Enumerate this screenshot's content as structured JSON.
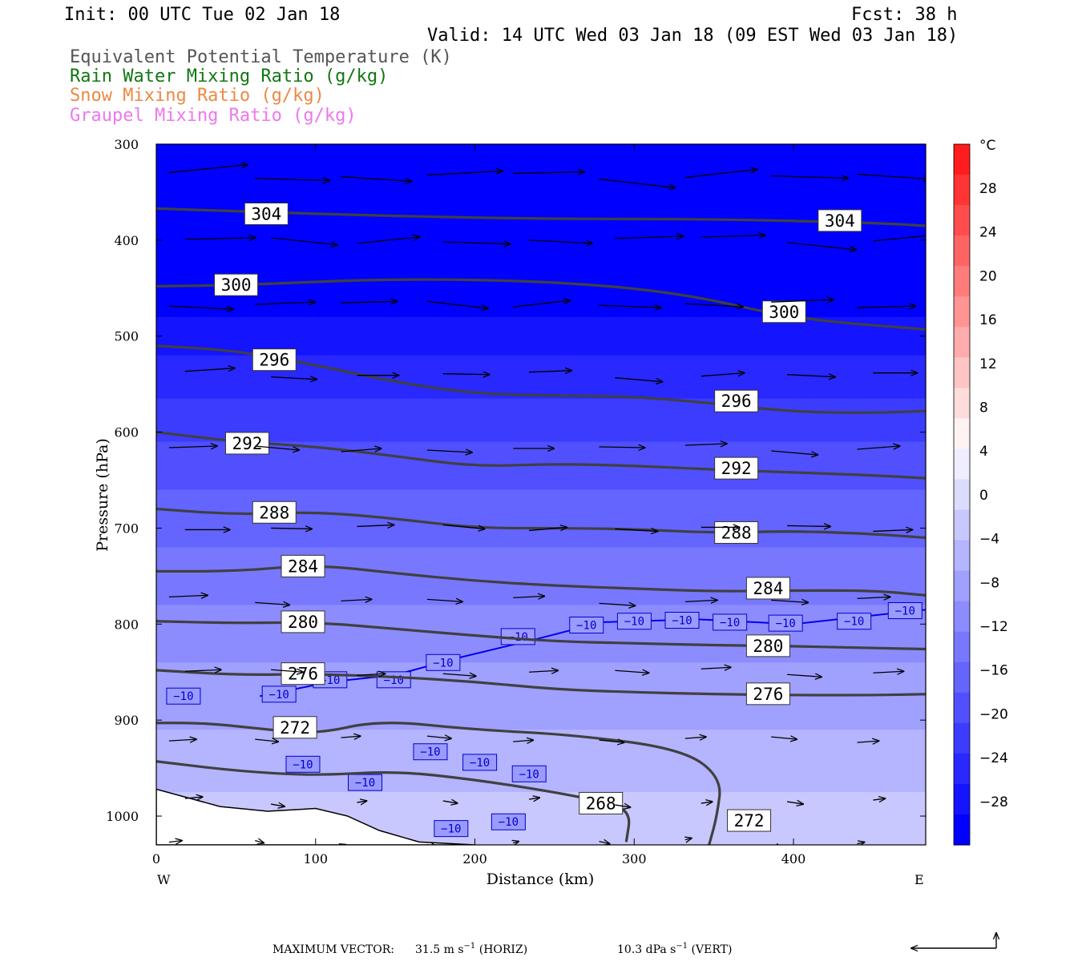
{
  "header": {
    "init": "Init: 00 UTC Tue 02 Jan 18",
    "fcst": "Fcst:   38 h",
    "valid": "Valid: 14 UTC Wed 03 Jan 18 (09 EST Wed 03 Jan 18)",
    "fields": [
      {
        "label": "Equivalent Potential Temperature (K)",
        "color": "#555555"
      },
      {
        "label": "Rain Water Mixing Ratio (g/kg)",
        "color": "#117711"
      },
      {
        "label": "Snow Mixing Ratio (g/kg)",
        "color": "#ee8844"
      },
      {
        "label": "Graupel Mixing Ratio (g/kg)",
        "color": "#ee77ee"
      }
    ]
  },
  "axes": {
    "ylabel": "Pressure (hPa)",
    "xlabel": "Distance (km)",
    "yticks": [
      "300",
      "400",
      "500",
      "600",
      "700",
      "800",
      "900",
      "1000"
    ],
    "xticks": [
      "0",
      "100",
      "200",
      "300",
      "400"
    ],
    "west": "W",
    "east": "E"
  },
  "colorbar": {
    "unit": "°C",
    "labels": [
      "28",
      "24",
      "20",
      "16",
      "12",
      "8",
      "4",
      "0",
      "−4",
      "−8",
      "−12",
      "−16",
      "−20",
      "−24",
      "−28"
    ]
  },
  "footer": {
    "max_vector": "MAXIMUM VECTOR:",
    "horiz_val": "31.5 m s",
    "horiz_exp": "−1",
    "horiz_tag": " (HORIZ)",
    "vert_val": "10.3 dPa s",
    "vert_exp": "−1",
    "vert_tag": " (VERT)"
  },
  "chart_data": {
    "type": "cross-section",
    "x_range_km": [
      0,
      483
    ],
    "y_range_hPa": [
      300,
      1030
    ],
    "y_scale": "linear",
    "fill_field": "Temperature (°C)",
    "fill_levels": [
      28,
      24,
      20,
      16,
      12,
      8,
      4,
      0,
      -4,
      -8,
      -12,
      -16,
      -20,
      -24,
      -28
    ],
    "fill_colors": [
      "#ff1c1c",
      "#ff3434",
      "#ff4c4c",
      "#ff6464",
      "#ff7c7c",
      "#ff9494",
      "#ffacac",
      "#ffc4c4",
      "#ffdcdc",
      "#fff2f2",
      "#eeeeff",
      "#dcdcff",
      "#c8c8ff",
      "#b4b4ff",
      "#a0a0ff",
      "#8c8cff",
      "#7878ff",
      "#6464ff",
      "#5050ff",
      "#3c3cff",
      "#2828ff",
      "#1414ff",
      "#0000ff"
    ],
    "temperature_bands": [
      {
        "top_hPa": 300,
        "color": "#0000ff"
      },
      {
        "top_hPa": 480,
        "color": "#1414ff"
      },
      {
        "top_hPa": 520,
        "color": "#2828ff"
      },
      {
        "top_hPa": 565,
        "color": "#3c3cff"
      },
      {
        "top_hPa": 610,
        "color": "#5050ff"
      },
      {
        "top_hPa": 660,
        "color": "#6464ff"
      },
      {
        "top_hPa": 720,
        "color": "#7878ff"
      },
      {
        "top_hPa": 780,
        "color": "#8c8cff"
      },
      {
        "top_hPa": 840,
        "color": "#a0a0ff"
      },
      {
        "top_hPa": 910,
        "color": "#b4b4ff"
      },
      {
        "top_hPa": 975,
        "color": "#c8c8ff"
      }
    ],
    "theta_e_contours": [
      {
        "value": 304,
        "x": [
          0,
          50,
          150,
          250,
          350,
          450,
          483
        ],
        "p": [
          367,
          370,
          375,
          378,
          378,
          382,
          385
        ],
        "labels": [
          [
            55,
            373
          ],
          [
            415,
            380
          ]
        ]
      },
      {
        "value": 300,
        "x": [
          0,
          50,
          150,
          250,
          330,
          400,
          483
        ],
        "p": [
          448,
          447,
          440,
          443,
          455,
          482,
          493
        ],
        "labels": [
          [
            36,
            447
          ],
          [
            380,
            475
          ]
        ]
      },
      {
        "value": 296,
        "x": [
          0,
          50,
          100,
          150,
          200,
          250,
          300,
          350,
          400,
          450,
          483
        ],
        "p": [
          510,
          515,
          530,
          548,
          560,
          562,
          563,
          570,
          579,
          580,
          578
        ],
        "labels": [
          [
            60,
            525
          ],
          [
            350,
            568
          ]
        ]
      },
      {
        "value": 292,
        "x": [
          0,
          50,
          100,
          150,
          200,
          250,
          300,
          350,
          400,
          450,
          483
        ],
        "p": [
          600,
          610,
          615,
          625,
          636,
          633,
          635,
          639,
          642,
          645,
          648
        ],
        "labels": [
          [
            43,
            612
          ],
          [
            350,
            638
          ]
        ]
      },
      {
        "value": 288,
        "x": [
          0,
          50,
          100,
          150,
          200,
          250,
          300,
          350,
          400,
          450,
          483
        ],
        "p": [
          680,
          686,
          683,
          690,
          700,
          700,
          701,
          705,
          703,
          706,
          710
        ],
        "labels": [
          [
            60,
            684
          ],
          [
            350,
            705
          ]
        ]
      },
      {
        "value": 284,
        "x": [
          0,
          50,
          100,
          150,
          200,
          250,
          300,
          350,
          400,
          450,
          483
        ],
        "p": [
          745,
          745,
          738,
          747,
          755,
          760,
          763,
          766,
          765,
          765,
          770
        ],
        "labels": [
          [
            78,
            740
          ],
          [
            370,
            763
          ]
        ]
      },
      {
        "value": 280,
        "x": [
          0,
          50,
          100,
          150,
          200,
          250,
          300,
          350,
          400,
          450,
          483
        ],
        "p": [
          797,
          799,
          798,
          805,
          812,
          818,
          820,
          822,
          823,
          825,
          826
        ],
        "labels": [
          [
            78,
            798
          ],
          [
            370,
            823
          ]
        ]
      },
      {
        "value": 276,
        "x": [
          0,
          50,
          100,
          150,
          200,
          250,
          300,
          350,
          400,
          450,
          483
        ],
        "p": [
          848,
          853,
          852,
          855,
          860,
          868,
          871,
          873,
          874,
          874,
          873
        ],
        "labels": [
          [
            78,
            852
          ],
          [
            370,
            873
          ]
        ]
      },
      {
        "value": 272,
        "x": [
          0,
          30,
          60,
          100,
          140,
          200,
          260,
          330,
          355,
          352,
          347
        ],
        "p": [
          903,
          903,
          908,
          915,
          900,
          910,
          915,
          930,
          960,
          1000,
          1030
        ],
        "labels": [
          [
            73,
            908
          ],
          [
            358,
            1005
          ]
        ]
      },
      {
        "value": 268,
        "x": [
          0,
          50,
          100,
          150,
          200,
          250,
          280,
          298,
          295
        ],
        "p": [
          943,
          953,
          958,
          953,
          962,
          975,
          985,
          995,
          1027
        ],
        "labels": [
          [
            265,
            987
          ]
        ]
      }
    ],
    "temp_isotherm_-10": {
      "x": [
        65,
        110,
        150,
        190,
        240,
        280,
        340,
        400,
        483
      ],
      "p": [
        875,
        860,
        853,
        835,
        815,
        798,
        795,
        800,
        785
      ]
    },
    "temp_isotherm_labels": [
      {
        "x": 7,
        "p": 875,
        "text": "−10"
      },
      {
        "x": 67,
        "p": 873,
        "text": "−10"
      },
      {
        "x": 99,
        "p": 858,
        "text": "−10"
      },
      {
        "x": 139,
        "p": 858,
        "text": "−10"
      },
      {
        "x": 170,
        "p": 840,
        "text": "−10"
      },
      {
        "x": 217,
        "p": 813,
        "text": "−10"
      },
      {
        "x": 260,
        "p": 801,
        "text": "−10"
      },
      {
        "x": 290,
        "p": 797,
        "text": "−10"
      },
      {
        "x": 320,
        "p": 796,
        "text": "−10"
      },
      {
        "x": 350,
        "p": 798,
        "text": "−10"
      },
      {
        "x": 385,
        "p": 799,
        "text": "−10"
      },
      {
        "x": 428,
        "p": 797,
        "text": "−10"
      },
      {
        "x": 460,
        "p": 786,
        "text": "−10"
      },
      {
        "x": 82,
        "p": 946,
        "text": "−10"
      },
      {
        "x": 121,
        "p": 965,
        "text": "−10"
      },
      {
        "x": 162,
        "p": 933,
        "text": "−10"
      },
      {
        "x": 193,
        "p": 944,
        "text": "−10"
      },
      {
        "x": 224,
        "p": 956,
        "text": "−10"
      },
      {
        "x": 175,
        "p": 1013,
        "text": "−10"
      },
      {
        "x": 211,
        "p": 1006,
        "text": "−10"
      }
    ],
    "wind_vectors_note": "horizontal wind vectors, mostly westerly; upper levels stronger",
    "max_vector": {
      "horiz_m_s": 31.5,
      "vert_dPa_s": 10.3
    }
  }
}
